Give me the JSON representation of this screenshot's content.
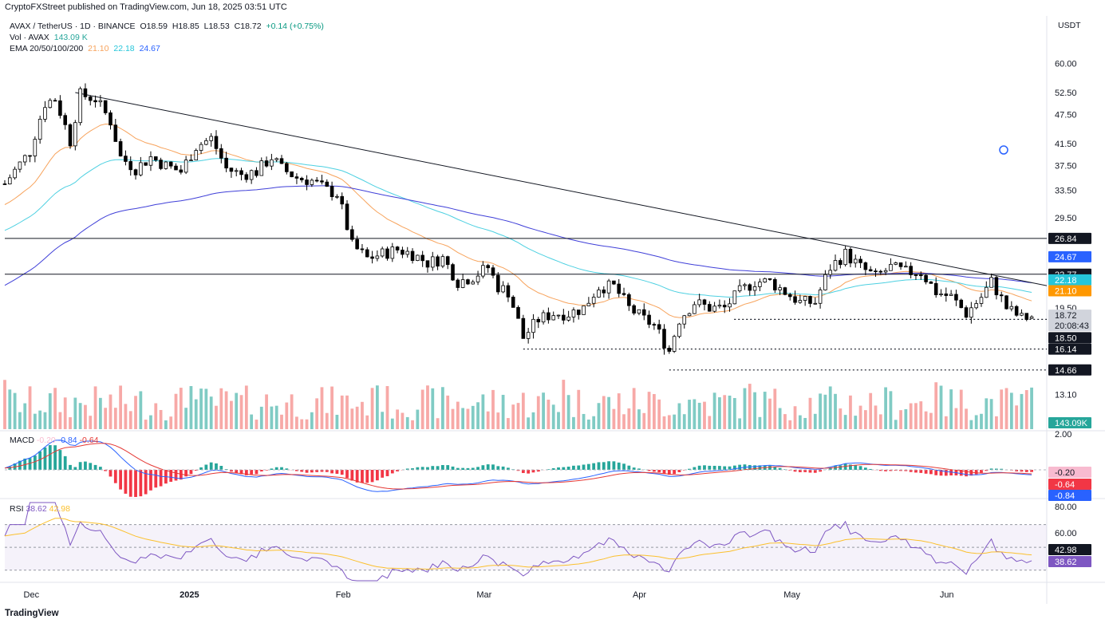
{
  "publisher": "CryptoFXStreet published on TradingView.com, Jun 18, 2025 03:51 UTC",
  "currency": "USDT",
  "footer_brand": "TradingView",
  "header": {
    "symbol": "AVAX / TetherUS · 1D · BINANCE",
    "open": "O18.59",
    "high": "H18.85",
    "low": "L18.53",
    "close": "C18.72",
    "change": "+0.14 (+0.75%)",
    "vol_label": "Vol · AVAX",
    "vol_value": "143.09 K",
    "ema_label": "EMA 20/50/100/200",
    "ema20": "21.10",
    "ema50": "22.18",
    "ema100": "24.67"
  },
  "macd": {
    "label": "MACD",
    "hist": "-0.20",
    "macd": "-0.84",
    "signal": "-0.64"
  },
  "rsi": {
    "label": "RSI",
    "value": "38.62",
    "ma": "42.98"
  },
  "colors": {
    "up": "#26a69a",
    "down": "#000000",
    "vol_up": "#80cbc4",
    "vol_down": "#f7a9a7",
    "ema20": "#f7a35c",
    "ema50": "#4dd0e1",
    "ema100": "#3f3fd8",
    "macd_line": "#2962ff",
    "signal_line": "#e53935",
    "rsi_line": "#7e57c2",
    "rsi_ma": "#fbc02d"
  },
  "price_axis_ticks": [
    "60.00",
    "52.50",
    "47.50",
    "41.50",
    "37.50",
    "33.50",
    "29.50",
    "19.50",
    "13.10"
  ],
  "price_badges": [
    {
      "text": "26.84",
      "bg": "#131722",
      "fg": "#ffffff"
    },
    {
      "text": "24.67",
      "bg": "#2962ff",
      "fg": "#ffffff"
    },
    {
      "text": "22.77",
      "bg": "#131722",
      "fg": "#ffffff"
    },
    {
      "text": "22.18",
      "bg": "#26c6da",
      "fg": "#ffffff"
    },
    {
      "text": "21.10",
      "bg": "#ff9800",
      "fg": "#ffffff"
    },
    {
      "text": "18.72",
      "bg": "#d1d4dc",
      "fg": "#131722"
    },
    {
      "text": "20:08:43",
      "bg": "#d1d4dc",
      "fg": "#131722"
    },
    {
      "text": "18.50",
      "bg": "#131722",
      "fg": "#ffffff"
    },
    {
      "text": "16.14",
      "bg": "#131722",
      "fg": "#ffffff"
    },
    {
      "text": "14.66",
      "bg": "#131722",
      "fg": "#ffffff"
    },
    {
      "text": "143.09K",
      "bg": "#26a69a",
      "fg": "#ffffff"
    }
  ],
  "macd_axis": [
    "2.00"
  ],
  "macd_badges": [
    {
      "text": "-0.20",
      "bg": "#f8bbd0",
      "fg": "#131722"
    },
    {
      "text": "-0.64",
      "bg": "#f23645",
      "fg": "#ffffff"
    },
    {
      "text": "-0.84",
      "bg": "#2962ff",
      "fg": "#ffffff"
    }
  ],
  "rsi_axis": [
    "80.00",
    "60.00"
  ],
  "rsi_badges": [
    {
      "text": "42.98",
      "bg": "#131722",
      "fg": "#ffffff"
    },
    {
      "text": "38.62",
      "bg": "#7e57c2",
      "fg": "#ffffff"
    }
  ],
  "time_axis": [
    "Dec",
    "2025",
    "Feb",
    "Mar",
    "Apr",
    "May",
    "Jun"
  ],
  "chart_data": {
    "type": "candlestick",
    "symbol": "AVAX/USDT",
    "timeframe": "1D",
    "x_range": [
      "2024-11-26",
      "2025-06-18"
    ],
    "ylim": [
      11.5,
      64
    ],
    "y_scale": "log",
    "horizontal_levels": [
      26.84,
      22.77
    ],
    "dotted_supports": [
      18.5,
      16.14,
      14.66
    ],
    "trendline": {
      "from": [
        "2024-12-10",
        52.5
      ],
      "to": [
        "2025-06-21",
        21.6
      ]
    },
    "close_series": [
      {
        "date": "2024-11-26",
        "close": 34.5
      },
      {
        "date": "2024-12-01",
        "close": 40
      },
      {
        "date": "2024-12-04",
        "close": 50
      },
      {
        "date": "2024-12-06",
        "close": 51
      },
      {
        "date": "2024-12-09",
        "close": 42
      },
      {
        "date": "2024-12-11",
        "close": 52
      },
      {
        "date": "2024-12-14",
        "close": 51
      },
      {
        "date": "2024-12-17",
        "close": 46
      },
      {
        "date": "2024-12-19",
        "close": 39
      },
      {
        "date": "2024-12-22",
        "close": 37
      },
      {
        "date": "2024-12-25",
        "close": 39
      },
      {
        "date": "2024-12-28",
        "close": 37.5
      },
      {
        "date": "2024-12-31",
        "close": 36.5
      },
      {
        "date": "2025-01-03",
        "close": 41
      },
      {
        "date": "2025-01-06",
        "close": 42.5
      },
      {
        "date": "2025-01-09",
        "close": 37
      },
      {
        "date": "2025-01-12",
        "close": 36
      },
      {
        "date": "2025-01-15",
        "close": 36.5
      },
      {
        "date": "2025-01-18",
        "close": 39
      },
      {
        "date": "2025-01-20",
        "close": 37
      },
      {
        "date": "2025-01-23",
        "close": 35.5
      },
      {
        "date": "2025-01-26",
        "close": 35
      },
      {
        "date": "2025-01-29",
        "close": 33.5
      },
      {
        "date": "2025-01-31",
        "close": 33
      },
      {
        "date": "2025-02-03",
        "close": 26
      },
      {
        "date": "2025-02-06",
        "close": 24.5
      },
      {
        "date": "2025-02-09",
        "close": 25
      },
      {
        "date": "2025-02-12",
        "close": 25.5
      },
      {
        "date": "2025-02-15",
        "close": 25
      },
      {
        "date": "2025-02-18",
        "close": 24
      },
      {
        "date": "2025-02-21",
        "close": 24.5
      },
      {
        "date": "2025-02-24",
        "close": 22
      },
      {
        "date": "2025-02-27",
        "close": 22.5
      },
      {
        "date": "2025-03-02",
        "close": 23.5
      },
      {
        "date": "2025-03-04",
        "close": 21.5
      },
      {
        "date": "2025-03-06",
        "close": 21
      },
      {
        "date": "2025-03-09",
        "close": 17
      },
      {
        "date": "2025-03-12",
        "close": 18.5
      },
      {
        "date": "2025-03-15",
        "close": 19
      },
      {
        "date": "2025-03-18",
        "close": 19
      },
      {
        "date": "2025-03-21",
        "close": 19.5
      },
      {
        "date": "2025-03-24",
        "close": 21.5
      },
      {
        "date": "2025-03-27",
        "close": 21.5
      },
      {
        "date": "2025-03-30",
        "close": 19.5
      },
      {
        "date": "2025-04-02",
        "close": 18.5
      },
      {
        "date": "2025-04-04",
        "close": 18
      },
      {
        "date": "2025-04-07",
        "close": 16
      },
      {
        "date": "2025-04-09",
        "close": 18.5
      },
      {
        "date": "2025-04-12",
        "close": 20
      },
      {
        "date": "2025-04-15",
        "close": 19.5
      },
      {
        "date": "2025-04-18",
        "close": 19.5
      },
      {
        "date": "2025-04-21",
        "close": 21
      },
      {
        "date": "2025-04-24",
        "close": 22
      },
      {
        "date": "2025-04-27",
        "close": 22
      },
      {
        "date": "2025-04-30",
        "close": 21
      },
      {
        "date": "2025-05-03",
        "close": 20
      },
      {
        "date": "2025-05-06",
        "close": 20
      },
      {
        "date": "2025-05-09",
        "close": 23.5
      },
      {
        "date": "2025-05-12",
        "close": 25
      },
      {
        "date": "2025-05-15",
        "close": 23.5
      },
      {
        "date": "2025-05-18",
        "close": 22.5
      },
      {
        "date": "2025-05-21",
        "close": 23.5
      },
      {
        "date": "2025-05-24",
        "close": 23
      },
      {
        "date": "2025-05-27",
        "close": 23
      },
      {
        "date": "2025-05-30",
        "close": 21
      },
      {
        "date": "2025-06-02",
        "close": 20.5
      },
      {
        "date": "2025-06-05",
        "close": 19
      },
      {
        "date": "2025-06-08",
        "close": 20.5
      },
      {
        "date": "2025-06-10",
        "close": 22
      },
      {
        "date": "2025-06-13",
        "close": 19.5
      },
      {
        "date": "2025-06-16",
        "close": 18.6
      },
      {
        "date": "2025-06-18",
        "close": 18.72
      }
    ],
    "ema_latest": {
      "EMA20": 21.1,
      "EMA50": 22.18,
      "EMA100": 24.67
    },
    "volume_latest": "143.09K",
    "macd_latest": {
      "histogram": -0.2,
      "macd": -0.84,
      "signal": -0.64
    },
    "rsi_latest": {
      "rsi": 38.62,
      "rsi_ma": 42.98
    }
  }
}
